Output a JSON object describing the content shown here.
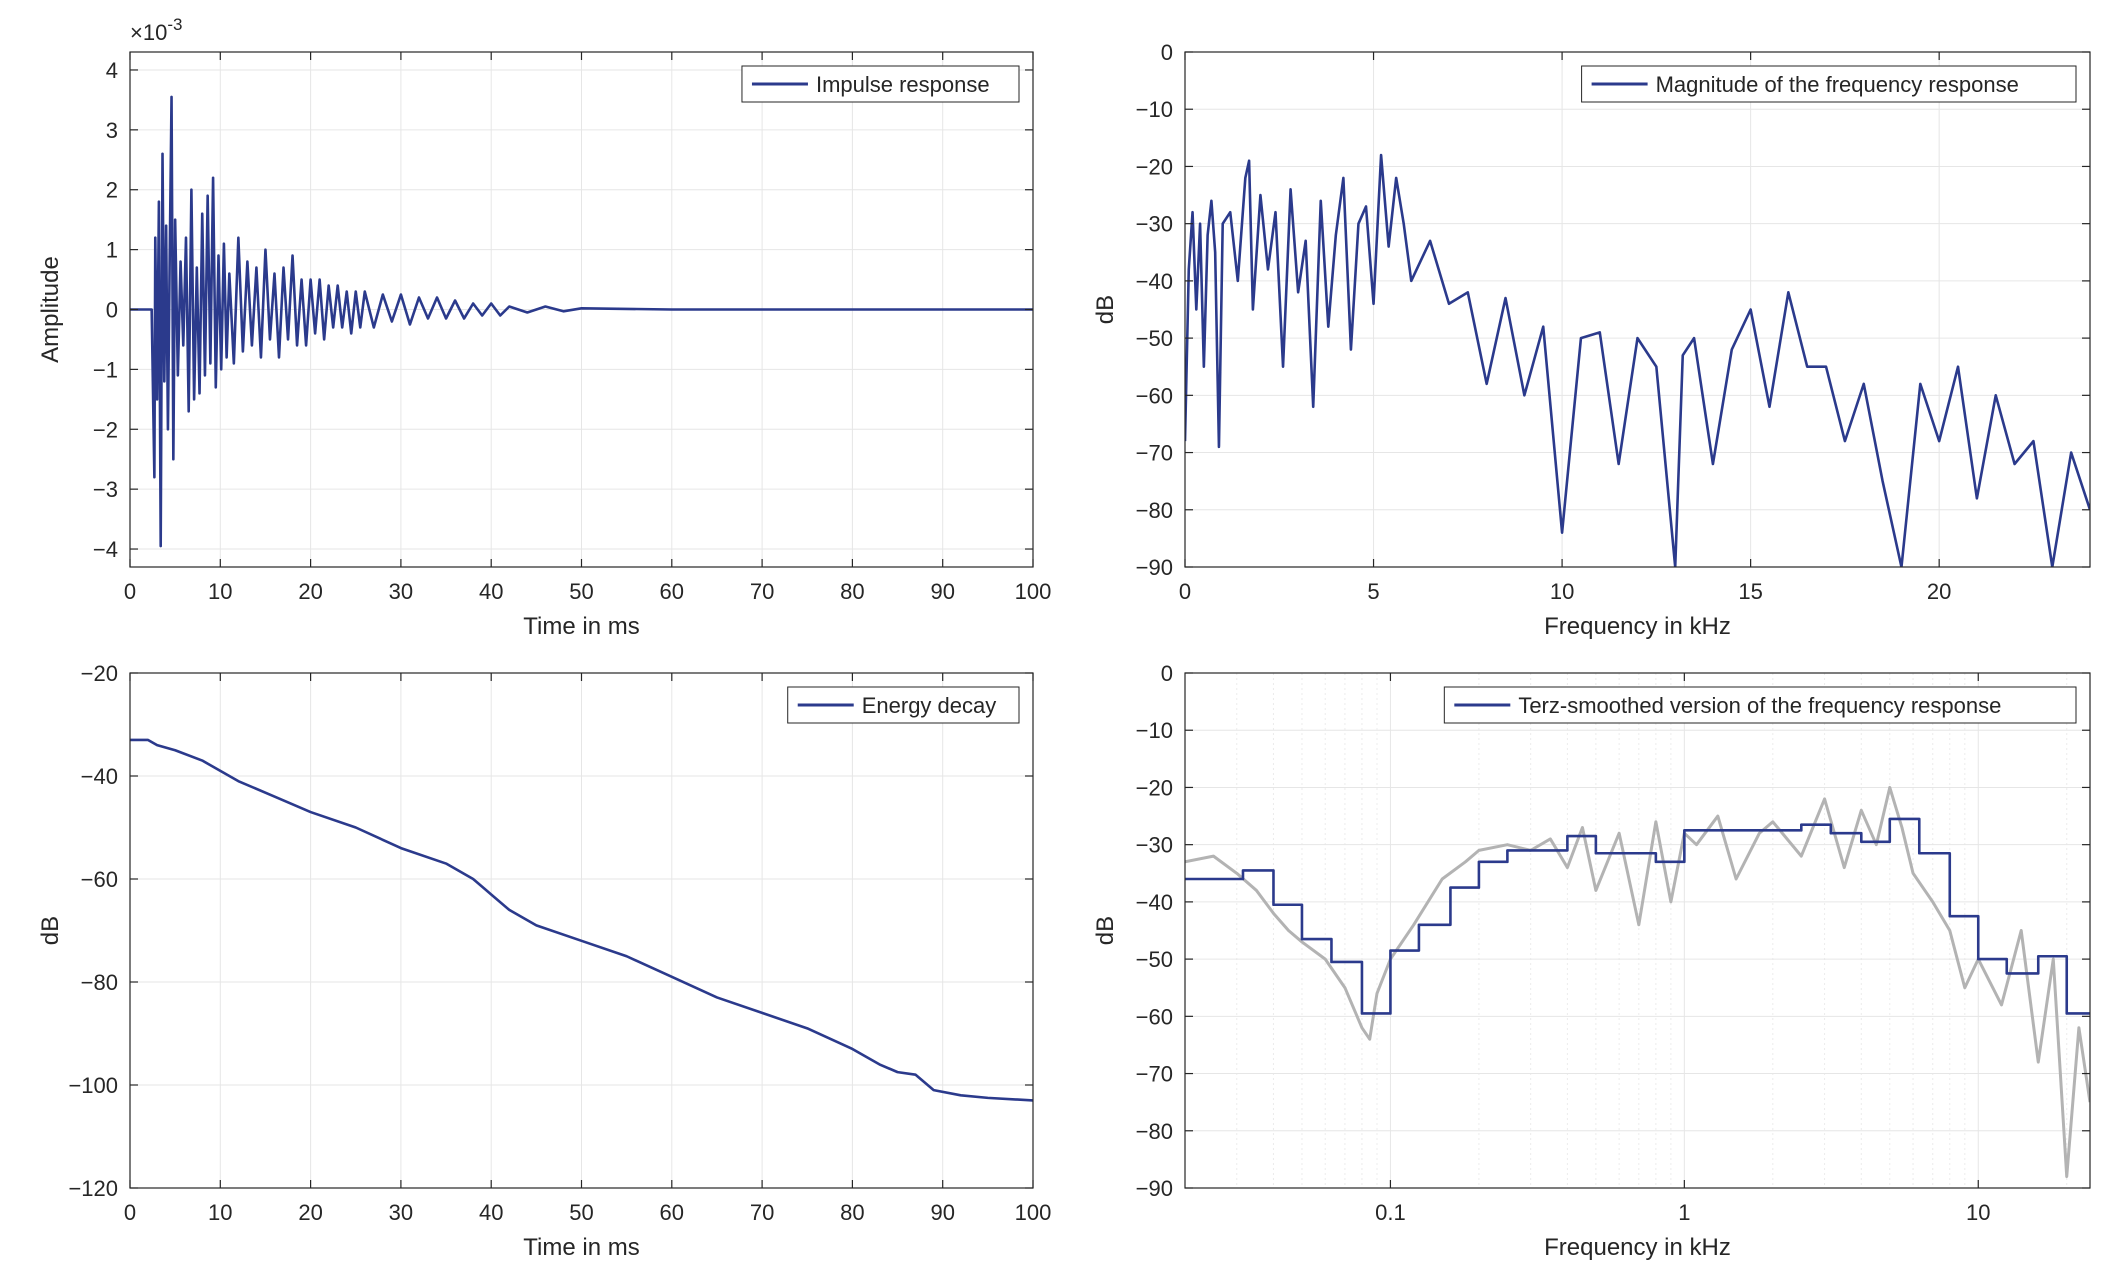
{
  "colors": {
    "series": "#2b3a8c",
    "gray": "#b3b3b3",
    "grid": "#e6e6e6",
    "axis": "#262626"
  },
  "chart_data": [
    {
      "id": "ir",
      "type": "line",
      "xlabel": "Time in ms",
      "ylabel": "Amplitude",
      "exponent_label": "×10",
      "exponent_power": "-3",
      "xlim": [
        0,
        100
      ],
      "ylim": [
        -4.3,
        4.3
      ],
      "xticks": [
        0,
        10,
        20,
        30,
        40,
        50,
        60,
        70,
        80,
        90,
        100
      ],
      "yticks": [
        -4,
        -3,
        -2,
        -1,
        0,
        1,
        2,
        3,
        4
      ],
      "legend": "top-right",
      "grid": true,
      "series": [
        {
          "name": "Impulse response",
          "color": "#2b3a8c",
          "x": [
            0,
            2.4,
            2.7,
            2.8,
            3.0,
            3.2,
            3.4,
            3.6,
            3.8,
            4.0,
            4.2,
            4.4,
            4.6,
            4.8,
            5.0,
            5.3,
            5.6,
            5.9,
            6.2,
            6.5,
            6.8,
            7.1,
            7.4,
            7.7,
            8.0,
            8.3,
            8.6,
            8.9,
            9.2,
            9.5,
            9.8,
            10.1,
            10.4,
            10.7,
            11.0,
            11.5,
            12.0,
            12.5,
            13.0,
            13.5,
            14.0,
            14.5,
            15.0,
            15.5,
            16.0,
            16.5,
            17.0,
            17.5,
            18.0,
            18.5,
            19.0,
            19.5,
            20.0,
            20.5,
            21.0,
            21.5,
            22.0,
            22.5,
            23.0,
            23.5,
            24.0,
            24.5,
            25.0,
            25.5,
            26.0,
            27.0,
            28.0,
            29.0,
            30.0,
            31.0,
            32.0,
            33.0,
            34.0,
            35.0,
            36.0,
            37.0,
            38.0,
            39.0,
            40.0,
            41.0,
            42.0,
            44.0,
            46.0,
            48.0,
            50.0,
            55.0,
            60.0,
            100.0
          ],
          "y": [
            0,
            0,
            -2.8,
            1.2,
            -1.5,
            1.8,
            -3.95,
            2.6,
            -1.2,
            1.4,
            -2.0,
            0.9,
            3.55,
            -2.5,
            1.5,
            -1.1,
            0.8,
            -0.6,
            1.2,
            -1.7,
            2.0,
            -1.5,
            0.7,
            -1.4,
            1.6,
            -1.1,
            1.9,
            -0.9,
            2.2,
            -1.3,
            0.9,
            -1.0,
            1.1,
            -0.8,
            0.6,
            -0.9,
            1.2,
            -0.7,
            0.8,
            -0.6,
            0.7,
            -0.8,
            1.0,
            -0.5,
            0.6,
            -0.8,
            0.7,
            -0.5,
            0.9,
            -0.6,
            0.5,
            -0.6,
            0.5,
            -0.4,
            0.5,
            -0.5,
            0.4,
            -0.3,
            0.4,
            -0.3,
            0.3,
            -0.4,
            0.3,
            -0.3,
            0.3,
            -0.3,
            0.25,
            -0.2,
            0.25,
            -0.25,
            0.2,
            -0.15,
            0.2,
            -0.15,
            0.15,
            -0.15,
            0.1,
            -0.1,
            0.1,
            -0.1,
            0.05,
            -0.05,
            0.05,
            -0.03,
            0.02,
            0.01,
            0,
            0
          ]
        }
      ]
    },
    {
      "id": "mag",
      "type": "line",
      "xlabel": "Frequency in kHz",
      "ylabel": "dB",
      "xlim": [
        0,
        24
      ],
      "ylim": [
        -90,
        0
      ],
      "xticks": [
        0,
        5,
        10,
        15,
        20
      ],
      "yticks": [
        0,
        -10,
        -20,
        -30,
        -40,
        -50,
        -60,
        -70,
        -80,
        -90
      ],
      "legend": "top-right",
      "grid": true,
      "series": [
        {
          "name": "Magnitude of the frequency response",
          "color": "#2b3a8c",
          "x": [
            0,
            0.1,
            0.2,
            0.3,
            0.4,
            0.5,
            0.6,
            0.7,
            0.8,
            0.9,
            1.0,
            1.2,
            1.4,
            1.6,
            1.7,
            1.8,
            2.0,
            2.2,
            2.4,
            2.6,
            2.8,
            3.0,
            3.2,
            3.4,
            3.6,
            3.8,
            4.0,
            4.2,
            4.4,
            4.6,
            4.8,
            5.0,
            5.2,
            5.4,
            5.6,
            5.8,
            6.0,
            6.5,
            7.0,
            7.5,
            8.0,
            8.5,
            9.0,
            9.5,
            10.0,
            10.5,
            11.0,
            11.5,
            12.0,
            12.5,
            13.0,
            13.2,
            13.5,
            14.0,
            14.5,
            15.0,
            15.5,
            16.0,
            16.5,
            17.0,
            17.5,
            18.0,
            18.5,
            19.0,
            19.5,
            20.0,
            20.5,
            21.0,
            21.5,
            22.0,
            22.5,
            23.0,
            23.5,
            24.0
          ],
          "y": [
            -68,
            -38,
            -28,
            -45,
            -30,
            -55,
            -32,
            -26,
            -35,
            -69,
            -30,
            -28,
            -40,
            -22,
            -19,
            -45,
            -25,
            -38,
            -28,
            -55,
            -24,
            -42,
            -33,
            -62,
            -26,
            -48,
            -32,
            -22,
            -52,
            -30,
            -27,
            -44,
            -18,
            -34,
            -22,
            -30,
            -40,
            -33,
            -44,
            -42,
            -58,
            -43,
            -60,
            -48,
            -84,
            -50,
            -49,
            -72,
            -50,
            -55,
            -90,
            -53,
            -50,
            -72,
            -52,
            -45,
            -62,
            -42,
            -55,
            -55,
            -68,
            -58,
            -75,
            -90,
            -58,
            -68,
            -55,
            -78,
            -60,
            -72,
            -68,
            -90,
            -70,
            -80
          ]
        }
      ]
    },
    {
      "id": "edc",
      "type": "line",
      "xlabel": "Time in ms",
      "ylabel": "dB",
      "xlim": [
        0,
        100
      ],
      "ylim": [
        -120,
        -20
      ],
      "xticks": [
        0,
        10,
        20,
        30,
        40,
        50,
        60,
        70,
        80,
        90,
        100
      ],
      "yticks": [
        -20,
        -40,
        -60,
        -80,
        -100,
        -120
      ],
      "legend": "top-right",
      "grid": true,
      "series": [
        {
          "name": "Energy decay",
          "color": "#2b3a8c",
          "x": [
            0,
            2,
            3,
            5,
            8,
            12,
            16,
            20,
            25,
            30,
            35,
            38,
            40,
            42,
            45,
            50,
            55,
            60,
            65,
            70,
            75,
            80,
            83,
            85,
            87,
            89,
            92,
            95,
            100
          ],
          "y": [
            -33,
            -33,
            -34,
            -35,
            -37,
            -41,
            -44,
            -47,
            -50,
            -54,
            -57,
            -60,
            -63,
            -66,
            -69,
            -72,
            -75,
            -79,
            -83,
            -86,
            -89,
            -93,
            -96,
            -97.5,
            -98,
            -101,
            -102,
            -102.5,
            -103
          ]
        }
      ]
    },
    {
      "id": "terz",
      "type": "line",
      "xlabel": "Frequency in kHz",
      "ylabel": "dB",
      "xscale": "log",
      "xlim": [
        0.02,
        24
      ],
      "ylim": [
        -90,
        0
      ],
      "xticks": [
        0.1,
        1,
        10
      ],
      "xticklabels": [
        "0.1",
        "1",
        "10"
      ],
      "yticks": [
        0,
        -10,
        -20,
        -30,
        -40,
        -50,
        -60,
        -70,
        -80,
        -90
      ],
      "legend": "top-right",
      "grid": true,
      "series": [
        {
          "name": "Terz-smoothed version of the frequency response",
          "color": "#2b3a8c",
          "x": [
            0.02,
            0.0315,
            0.0315,
            0.04,
            0.04,
            0.05,
            0.05,
            0.063,
            0.063,
            0.08,
            0.08,
            0.1,
            0.1,
            0.125,
            0.125,
            0.16,
            0.16,
            0.2,
            0.2,
            0.25,
            0.25,
            0.315,
            0.315,
            0.4,
            0.4,
            0.5,
            0.5,
            0.63,
            0.63,
            0.8,
            0.8,
            1.0,
            1.0,
            1.25,
            1.25,
            1.6,
            1.6,
            2.0,
            2.0,
            2.5,
            2.5,
            3.15,
            3.15,
            4.0,
            4.0,
            5.0,
            5.0,
            6.3,
            6.3,
            8.0,
            8.0,
            10.0,
            10.0,
            12.5,
            12.5,
            16.0,
            16.0,
            20.0,
            20.0,
            24.0
          ],
          "y": [
            -36,
            -36,
            -34.5,
            -34.5,
            -40.5,
            -40.5,
            -46.5,
            -46.5,
            -50.5,
            -50.5,
            -59.5,
            -59.5,
            -48.5,
            -48.5,
            -44,
            -44,
            -37.5,
            -37.5,
            -33,
            -33,
            -31,
            -31,
            -31,
            -31,
            -28.5,
            -28.5,
            -31.5,
            -31.5,
            -31.5,
            -31.5,
            -33,
            -33,
            -27.5,
            -27.5,
            -27.5,
            -27.5,
            -27.5,
            -27.5,
            -27.5,
            -27.5,
            -26.5,
            -26.5,
            -28,
            -28,
            -29.5,
            -29.5,
            -25.5,
            -25.5,
            -31.5,
            -31.5,
            -42.5,
            -42.5,
            -50,
            -50,
            -52.5,
            -52.5,
            -49.5,
            -49.5,
            -59.5,
            -59.5
          ]
        },
        {
          "name": "",
          "color": "#b3b3b3",
          "x": [
            0.02,
            0.025,
            0.03,
            0.035,
            0.04,
            0.045,
            0.05,
            0.06,
            0.07,
            0.08,
            0.085,
            0.09,
            0.1,
            0.12,
            0.15,
            0.18,
            0.2,
            0.25,
            0.3,
            0.35,
            0.4,
            0.45,
            0.5,
            0.6,
            0.7,
            0.8,
            0.9,
            1.0,
            1.1,
            1.3,
            1.5,
            1.8,
            2.0,
            2.5,
            3.0,
            3.5,
            4.0,
            4.5,
            5.0,
            5.5,
            6.0,
            7.0,
            8.0,
            9.0,
            10.0,
            12.0,
            14.0,
            16.0,
            18.0,
            20.0,
            22.0,
            24.0
          ],
          "y": [
            -33,
            -32,
            -35,
            -38,
            -42,
            -45,
            -47,
            -50,
            -55,
            -62,
            -64,
            -56,
            -50,
            -44,
            -36,
            -33,
            -31,
            -30,
            -31,
            -29,
            -34,
            -27,
            -38,
            -28,
            -44,
            -26,
            -40,
            -28,
            -30,
            -25,
            -36,
            -28,
            -26,
            -32,
            -22,
            -34,
            -24,
            -30,
            -20,
            -27,
            -35,
            -40,
            -45,
            -55,
            -50,
            -58,
            -45,
            -68,
            -50,
            -88,
            -62,
            -75
          ]
        }
      ]
    }
  ]
}
